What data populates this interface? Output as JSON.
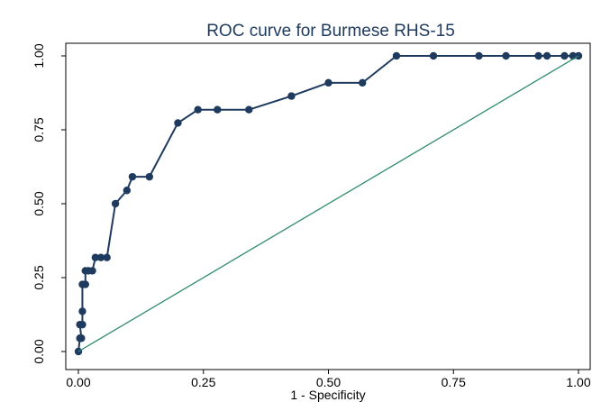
{
  "chart_data": {
    "type": "line",
    "title": "ROC curve for Burmese RHS-15",
    "xlabel": "1 - Specificity",
    "ylabel": "",
    "xlim": [
      0,
      1
    ],
    "ylim": [
      0,
      1
    ],
    "x_ticks": [
      "0.00",
      "0.25",
      "0.50",
      "0.75",
      "1.00"
    ],
    "y_ticks": [
      "0.00",
      "0.25",
      "0.50",
      "0.75",
      "1.00"
    ],
    "grid": false,
    "legend": "none",
    "series": [
      {
        "points": [
          [
            0.0,
            0.0
          ],
          [
            0.003,
            0.045
          ],
          [
            0.006,
            0.045
          ],
          [
            0.003,
            0.091
          ],
          [
            0.008,
            0.091
          ],
          [
            0.008,
            0.136
          ],
          [
            0.008,
            0.227
          ],
          [
            0.014,
            0.227
          ],
          [
            0.014,
            0.273
          ],
          [
            0.02,
            0.273
          ],
          [
            0.028,
            0.273
          ],
          [
            0.034,
            0.318
          ],
          [
            0.045,
            0.318
          ],
          [
            0.057,
            0.318
          ],
          [
            0.074,
            0.5
          ],
          [
            0.097,
            0.545
          ],
          [
            0.108,
            0.591
          ],
          [
            0.142,
            0.591
          ],
          [
            0.199,
            0.773
          ],
          [
            0.239,
            0.818
          ],
          [
            0.278,
            0.818
          ],
          [
            0.341,
            0.818
          ],
          [
            0.426,
            0.864
          ],
          [
            0.5,
            0.909
          ],
          [
            0.568,
            0.909
          ],
          [
            0.636,
            1.0
          ],
          [
            0.71,
            1.0
          ],
          [
            0.801,
            1.0
          ],
          [
            0.855,
            1.0
          ],
          [
            0.92,
            1.0
          ],
          [
            0.937,
            1.0
          ],
          [
            0.972,
            1.0
          ],
          [
            0.989,
            1.0
          ],
          [
            1.0,
            1.0
          ]
        ],
        "color": "#1e3a5f"
      },
      {
        "points": [
          [
            0,
            0
          ],
          [
            1,
            1
          ]
        ],
        "color": "#2e8b6f"
      }
    ]
  }
}
